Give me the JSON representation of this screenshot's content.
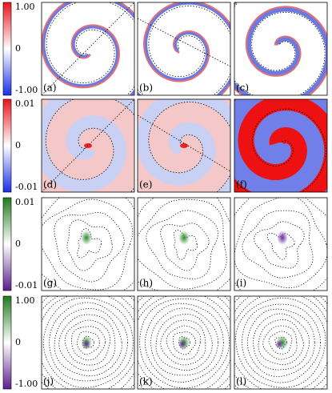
{
  "rows": [
    {
      "colorbar": {
        "ticks": [
          "1.00",
          "0",
          "-1.00"
        ]
      },
      "panels": [
        "(a)",
        "(b)",
        "(c)"
      ]
    },
    {
      "colorbar": {
        "ticks": [
          "0.01",
          "0",
          "-0.01"
        ]
      },
      "panels": [
        "(d)",
        "(e)",
        "(f)"
      ]
    },
    {
      "colorbar": {
        "ticks": [
          "0.01",
          "0",
          "-0.01"
        ]
      },
      "panels": [
        "(g)",
        "(h)",
        "(i)"
      ]
    },
    {
      "colorbar": {
        "ticks": [
          "1.00",
          "0",
          "-1.00"
        ]
      },
      "panels": [
        "(j)",
        "(k)",
        "(l)"
      ]
    }
  ]
}
